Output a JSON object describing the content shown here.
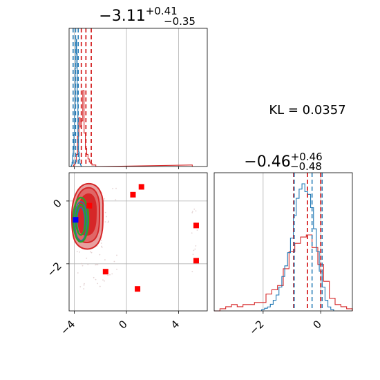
{
  "chart_data": {
    "type": "corner",
    "colors": {
      "samples": "#d62728",
      "reference": "#1f77b4",
      "contour_b": "#2ca02c",
      "marker_b": "#0000ff",
      "marker_a": "#ff0000"
    },
    "kl_text": "KL = 0.0357",
    "grid": true,
    "panels": [
      {
        "id": "hist_x",
        "type": "histogram",
        "title": {
          "main": "−3.11",
          "sup": "+0.41",
          "sub": "−0.35"
        },
        "xlim": [
          -4.4,
          6.2
        ],
        "red_hist": {
          "x": [
            -4.0,
            -3.9,
            -3.8,
            -3.7,
            -3.6,
            -3.5,
            -3.4,
            -3.3,
            -3.2,
            -3.1,
            -3.0,
            -2.9,
            -2.8,
            -2.7,
            -2.6,
            -2.5,
            -2.4,
            -2.3,
            -2.2,
            -2.1,
            -2.0,
            5.0
          ],
          "counts": [
            1,
            3,
            8,
            20,
            32,
            26,
            30,
            50,
            22,
            12,
            8,
            5,
            3,
            2,
            1,
            1,
            1,
            0,
            0,
            0,
            0,
            1
          ]
        },
        "blue_hist": {
          "x": [
            -4.2,
            -4.15,
            -4.1,
            -4.05,
            -4.0,
            -3.95,
            -3.9,
            -3.85,
            -3.8,
            -3.75,
            -3.7,
            -3.65,
            -3.6,
            -3.55,
            -3.5,
            -3.45
          ],
          "counts": [
            1,
            3,
            8,
            12,
            22,
            40,
            68,
            88,
            78,
            45,
            22,
            10,
            5,
            2,
            1,
            0
          ]
        },
        "red_quantiles": [
          -3.46,
          -3.11,
          -2.7
        ],
        "blue_quantiles": [
          -4.09,
          -3.9,
          -3.7
        ]
      },
      {
        "id": "scatter_xy",
        "type": "scatter2d",
        "xlim": [
          -4.4,
          6.2
        ],
        "ylim": [
          -3.5,
          0.9
        ],
        "xticks": [
          "−4",
          "0",
          "4"
        ],
        "xtick_values": [
          -4,
          0,
          4
        ],
        "yticks": [
          "0",
          "−2"
        ],
        "ytick_values": [
          0,
          -2
        ],
        "red_markers": [
          {
            "x": -2.85,
            "y": -0.15
          },
          {
            "x": 0.5,
            "y": 0.2
          },
          {
            "x": 1.15,
            "y": 0.45
          },
          {
            "x": 5.35,
            "y": -0.78
          },
          {
            "x": 5.35,
            "y": -1.9
          },
          {
            "x": -1.6,
            "y": -2.25
          },
          {
            "x": 0.85,
            "y": -2.8
          }
        ],
        "blue_marker": {
          "x": -3.9,
          "y": -0.6
        }
      },
      {
        "id": "hist_y",
        "type": "histogram",
        "title": {
          "main": "−0.46",
          "sup": "+0.46",
          "sub": "−0.48"
        },
        "xlim": [
          -3.7,
          1.1
        ],
        "xticks": [
          "−2",
          "0"
        ],
        "xtick_values": [
          -2,
          0
        ],
        "red_hist": {
          "x": [
            -3.6,
            -3.4,
            -3.2,
            -3.0,
            -2.8,
            -2.6,
            -2.4,
            -2.2,
            -2.0,
            -1.8,
            -1.6,
            -1.4,
            -1.2,
            -1.0,
            -0.8,
            -0.6,
            -0.4,
            -0.2,
            0.0,
            0.2,
            0.4,
            0.6,
            0.8,
            1.0
          ],
          "counts": [
            0,
            1,
            2,
            3,
            2,
            3,
            3,
            4,
            4,
            8,
            10,
            12,
            20,
            28,
            32,
            35,
            36,
            30,
            22,
            14,
            6,
            3,
            2,
            1
          ]
        },
        "blue_hist": {
          "x": [
            -2.0,
            -1.9,
            -1.8,
            -1.7,
            -1.6,
            -1.5,
            -1.4,
            -1.3,
            -1.2,
            -1.1,
            -1.0,
            -0.9,
            -0.8,
            -0.7,
            -0.6,
            -0.5,
            -0.4,
            -0.3,
            -0.2,
            -0.1,
            0.0,
            0.1,
            0.2,
            0.3,
            0.4
          ],
          "counts": [
            1,
            2,
            3,
            5,
            8,
            12,
            18,
            26,
            34,
            44,
            55,
            72,
            85,
            92,
            96,
            90,
            88,
            78,
            62,
            45,
            30,
            18,
            8,
            3,
            1
          ]
        },
        "red_quantiles": [
          -0.94,
          -0.46,
          0.0
        ],
        "blue_quantiles": [
          -0.92,
          -0.3,
          0.05
        ]
      }
    ]
  }
}
